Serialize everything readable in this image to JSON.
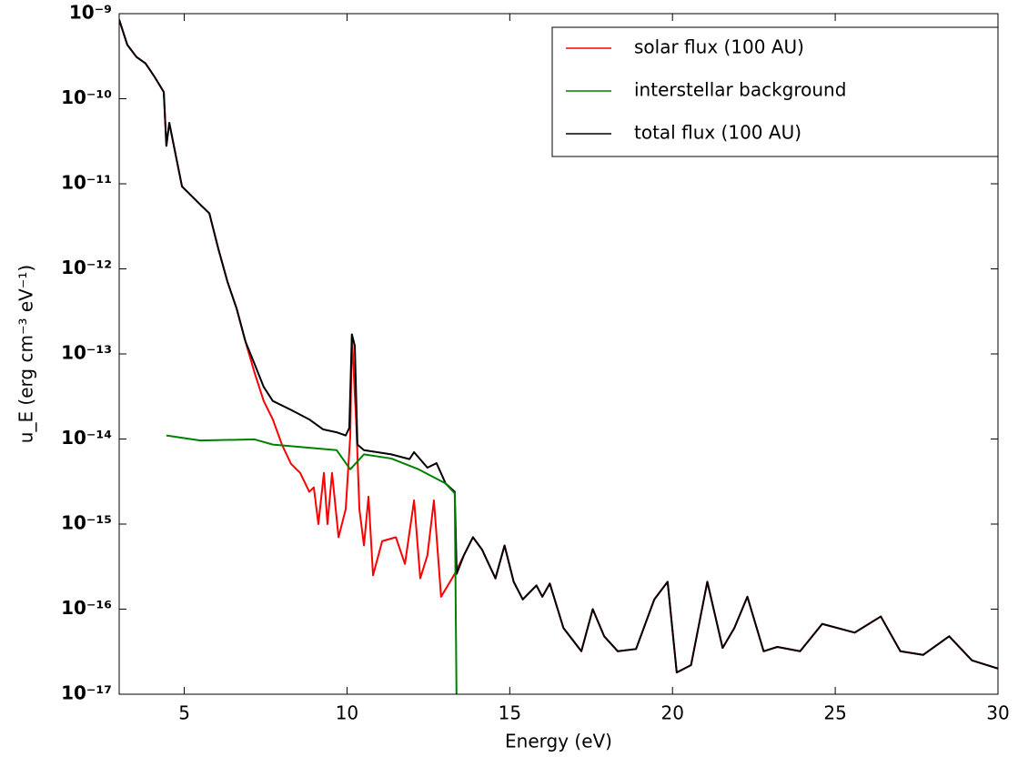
{
  "chart_data": {
    "type": "line",
    "xlabel": "Energy (eV)",
    "ylabel": "u_E (erg cm⁻³ eV⁻¹)",
    "yscale": "log",
    "xlim": [
      3,
      30
    ],
    "xticks": [
      5,
      10,
      15,
      20,
      25,
      30
    ],
    "ylim": [
      1e-17,
      1e-09
    ],
    "yticks": [
      {
        "value": 1e-17,
        "label": "10⁻¹⁷"
      },
      {
        "value": 1e-16,
        "label": "10⁻¹⁶"
      },
      {
        "value": 1e-15,
        "label": "10⁻¹⁵"
      },
      {
        "value": 1e-14,
        "label": "10⁻¹⁴"
      },
      {
        "value": 1e-13,
        "label": "10⁻¹³"
      },
      {
        "value": 1e-12,
        "label": "10⁻¹²"
      },
      {
        "value": 1e-11,
        "label": "10⁻¹¹"
      },
      {
        "value": 1e-10,
        "label": "10⁻¹⁰"
      },
      {
        "value": 1e-09,
        "label": "10⁻⁹"
      }
    ],
    "legend": "upper right",
    "series": [
      {
        "name": "solar flux (100 AU)",
        "color": "#ff0000",
        "x": [
          3.0,
          3.25,
          3.53,
          3.81,
          4.09,
          4.37,
          4.45,
          4.54,
          4.65,
          4.93,
          5.21,
          5.49,
          5.77,
          6.05,
          6.33,
          6.61,
          6.88,
          7.16,
          7.44,
          7.72,
          8.0,
          8.28,
          8.56,
          8.84,
          8.98,
          9.12,
          9.29,
          9.4,
          9.54,
          9.74,
          9.96,
          10.1,
          10.15,
          10.29,
          10.38,
          10.52,
          10.66,
          10.8,
          11.08,
          11.5,
          11.78,
          12.06,
          12.25,
          12.47,
          12.67,
          12.89,
          13.31,
          13.59,
          13.87,
          14.15,
          14.56,
          14.84,
          15.12,
          15.4,
          15.82,
          16.0,
          16.23,
          16.65,
          17.2,
          17.55,
          17.9,
          18.32,
          18.88,
          19.44,
          19.85,
          20.13,
          20.57,
          21.07,
          21.54,
          21.9,
          22.3,
          22.8,
          23.22,
          23.92,
          24.6,
          25.6,
          26.4,
          27.0,
          27.7,
          28.5,
          29.2,
          30.0
        ],
        "values": [
          8.5e-10,
          4.3e-10,
          3.1e-10,
          2.6e-10,
          1.8e-10,
          1.2e-10,
          2.8e-11,
          5.2e-11,
          3.2e-11,
          9.3e-12,
          7.3e-12,
          5.7e-12,
          4.5e-12,
          1.7e-12,
          7e-13,
          3.4e-13,
          1.4e-13,
          6e-14,
          2.8e-14,
          1.7e-14,
          8.6e-15,
          5.1e-15,
          4e-15,
          2.4e-15,
          2.7e-15,
          1e-15,
          4e-15,
          1e-15,
          4e-15,
          7e-16,
          1.5e-15,
          1.1e-14,
          1.7e-13,
          1.35e-14,
          1.5e-15,
          5.6e-16,
          2.1e-15,
          2.5e-16,
          6.3e-16,
          7e-16,
          3.4e-16,
          1.9e-15,
          2.3e-16,
          4.3e-16,
          1.9e-15,
          1.4e-16,
          2.6e-16,
          4.3e-16,
          7e-16,
          5e-16,
          2.3e-16,
          5.6e-16,
          2.1e-16,
          1.3e-16,
          1.9e-16,
          1.4e-16,
          2e-16,
          6e-17,
          3.2e-17,
          1e-16,
          4.8e-17,
          3.2e-17,
          3.4e-17,
          1.3e-16,
          2.1e-16,
          1.8e-17,
          2.2e-17,
          2.1e-16,
          3.5e-17,
          6e-17,
          1.4e-16,
          3.2e-17,
          3.6e-17,
          3.2e-17,
          6.7e-17,
          5.3e-17,
          8.2e-17,
          3.2e-17,
          2.9e-17,
          4.8e-17,
          2.5e-17,
          2e-17
        ]
      },
      {
        "name": "interstellar background",
        "color": "#008000",
        "x": [
          4.45,
          5.49,
          7.16,
          7.72,
          8.84,
          9.68,
          10.1,
          10.52,
          11.36,
          12.2,
          13.03,
          13.31,
          13.37
        ],
        "values": [
          1.1e-14,
          9.6e-15,
          9.9e-15,
          8.6e-15,
          7.9e-15,
          7.4e-15,
          4.4e-15,
          6.6e-15,
          5.9e-15,
          4.4e-15,
          3e-15,
          2.3e-15,
          5e-18
        ]
      },
      {
        "name": "total flux (100 AU)",
        "color": "#000000",
        "x": [
          3.0,
          3.25,
          3.53,
          3.81,
          4.09,
          4.37,
          4.45,
          4.54,
          4.65,
          4.93,
          5.21,
          5.49,
          5.77,
          6.05,
          6.33,
          6.61,
          6.88,
          7.16,
          7.44,
          7.72,
          8.28,
          8.84,
          9.26,
          9.68,
          9.96,
          10.07,
          10.15,
          10.24,
          10.32,
          10.52,
          11.36,
          11.92,
          12.06,
          12.47,
          12.75,
          13.03,
          13.31,
          13.37,
          13.59,
          13.87,
          14.15,
          14.56,
          14.84,
          15.12,
          15.4,
          15.82,
          16.0,
          16.23,
          16.65,
          17.2,
          17.55,
          17.9,
          18.32,
          18.88,
          19.44,
          19.85,
          20.13,
          20.57,
          21.07,
          21.54,
          21.9,
          22.3,
          22.8,
          23.22,
          23.92,
          24.6,
          25.6,
          26.4,
          27.0,
          27.7,
          28.5,
          29.2,
          30.0
        ],
        "values": [
          8.5e-10,
          4.3e-10,
          3.1e-10,
          2.6e-10,
          1.8e-10,
          1.2e-10,
          2.8e-11,
          5.2e-11,
          3.2e-11,
          9.3e-12,
          7.3e-12,
          5.7e-12,
          4.5e-12,
          1.7e-12,
          7e-13,
          3.4e-13,
          1.4e-13,
          7.6e-14,
          4.1e-14,
          2.8e-14,
          2.2e-14,
          1.7e-14,
          1.3e-14,
          1.2e-14,
          1.1e-14,
          1.35e-14,
          1.7e-13,
          1.25e-13,
          8.6e-15,
          7.4e-15,
          6.6e-15,
          5.8e-15,
          7e-15,
          4.6e-15,
          5.2e-15,
          3e-15,
          2.4e-15,
          2.6e-16,
          4.3e-16,
          7e-16,
          5e-16,
          2.3e-16,
          5.6e-16,
          2.1e-16,
          1.3e-16,
          1.9e-16,
          1.4e-16,
          2e-16,
          6e-17,
          3.2e-17,
          1e-16,
          4.8e-17,
          3.2e-17,
          3.4e-17,
          1.3e-16,
          2.1e-16,
          1.8e-17,
          2.2e-17,
          2.1e-16,
          3.5e-17,
          6e-17,
          1.4e-16,
          3.2e-17,
          3.6e-17,
          3.2e-17,
          6.7e-17,
          5.3e-17,
          8.2e-17,
          3.2e-17,
          2.9e-17,
          4.8e-17,
          2.5e-17,
          2e-17
        ]
      }
    ]
  }
}
